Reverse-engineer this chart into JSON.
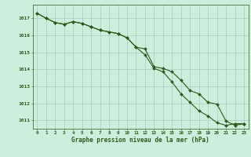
{
  "x": [
    0,
    1,
    2,
    3,
    4,
    5,
    6,
    7,
    8,
    9,
    10,
    11,
    12,
    13,
    14,
    15,
    16,
    17,
    18,
    19,
    20,
    21,
    22,
    23
  ],
  "line1": [
    1017.3,
    1017.0,
    1016.75,
    1016.65,
    1016.8,
    1016.7,
    1016.5,
    1016.3,
    1016.2,
    1016.1,
    1015.85,
    1015.3,
    1014.85,
    1014.05,
    1013.85,
    1013.25,
    1012.55,
    1012.05,
    1011.55,
    1011.25,
    1010.85,
    1010.7,
    1010.8,
    1010.8
  ],
  "line2": [
    1017.3,
    1017.0,
    1016.75,
    1016.65,
    1016.8,
    1016.7,
    1016.5,
    1016.3,
    1016.2,
    1016.1,
    1015.85,
    1015.3,
    1015.2,
    1014.15,
    1014.05,
    1013.85,
    1013.35,
    1012.75,
    1012.55,
    1012.05,
    1011.95,
    1010.95,
    1010.7,
    1010.8
  ],
  "ylim": [
    1010.5,
    1017.8
  ],
  "yticks": [
    1011,
    1012,
    1013,
    1014,
    1015,
    1016,
    1017
  ],
  "xticks": [
    0,
    1,
    2,
    3,
    4,
    5,
    6,
    7,
    8,
    9,
    10,
    11,
    12,
    13,
    14,
    15,
    16,
    17,
    18,
    19,
    20,
    21,
    22,
    23
  ],
  "xlabel": "Graphe pression niveau de la mer (hPa)",
  "line_color": "#2d5a1b",
  "bg_color": "#cceedd",
  "grid_color": "#aaccbb",
  "markersize": 2.0,
  "linewidth": 0.8
}
